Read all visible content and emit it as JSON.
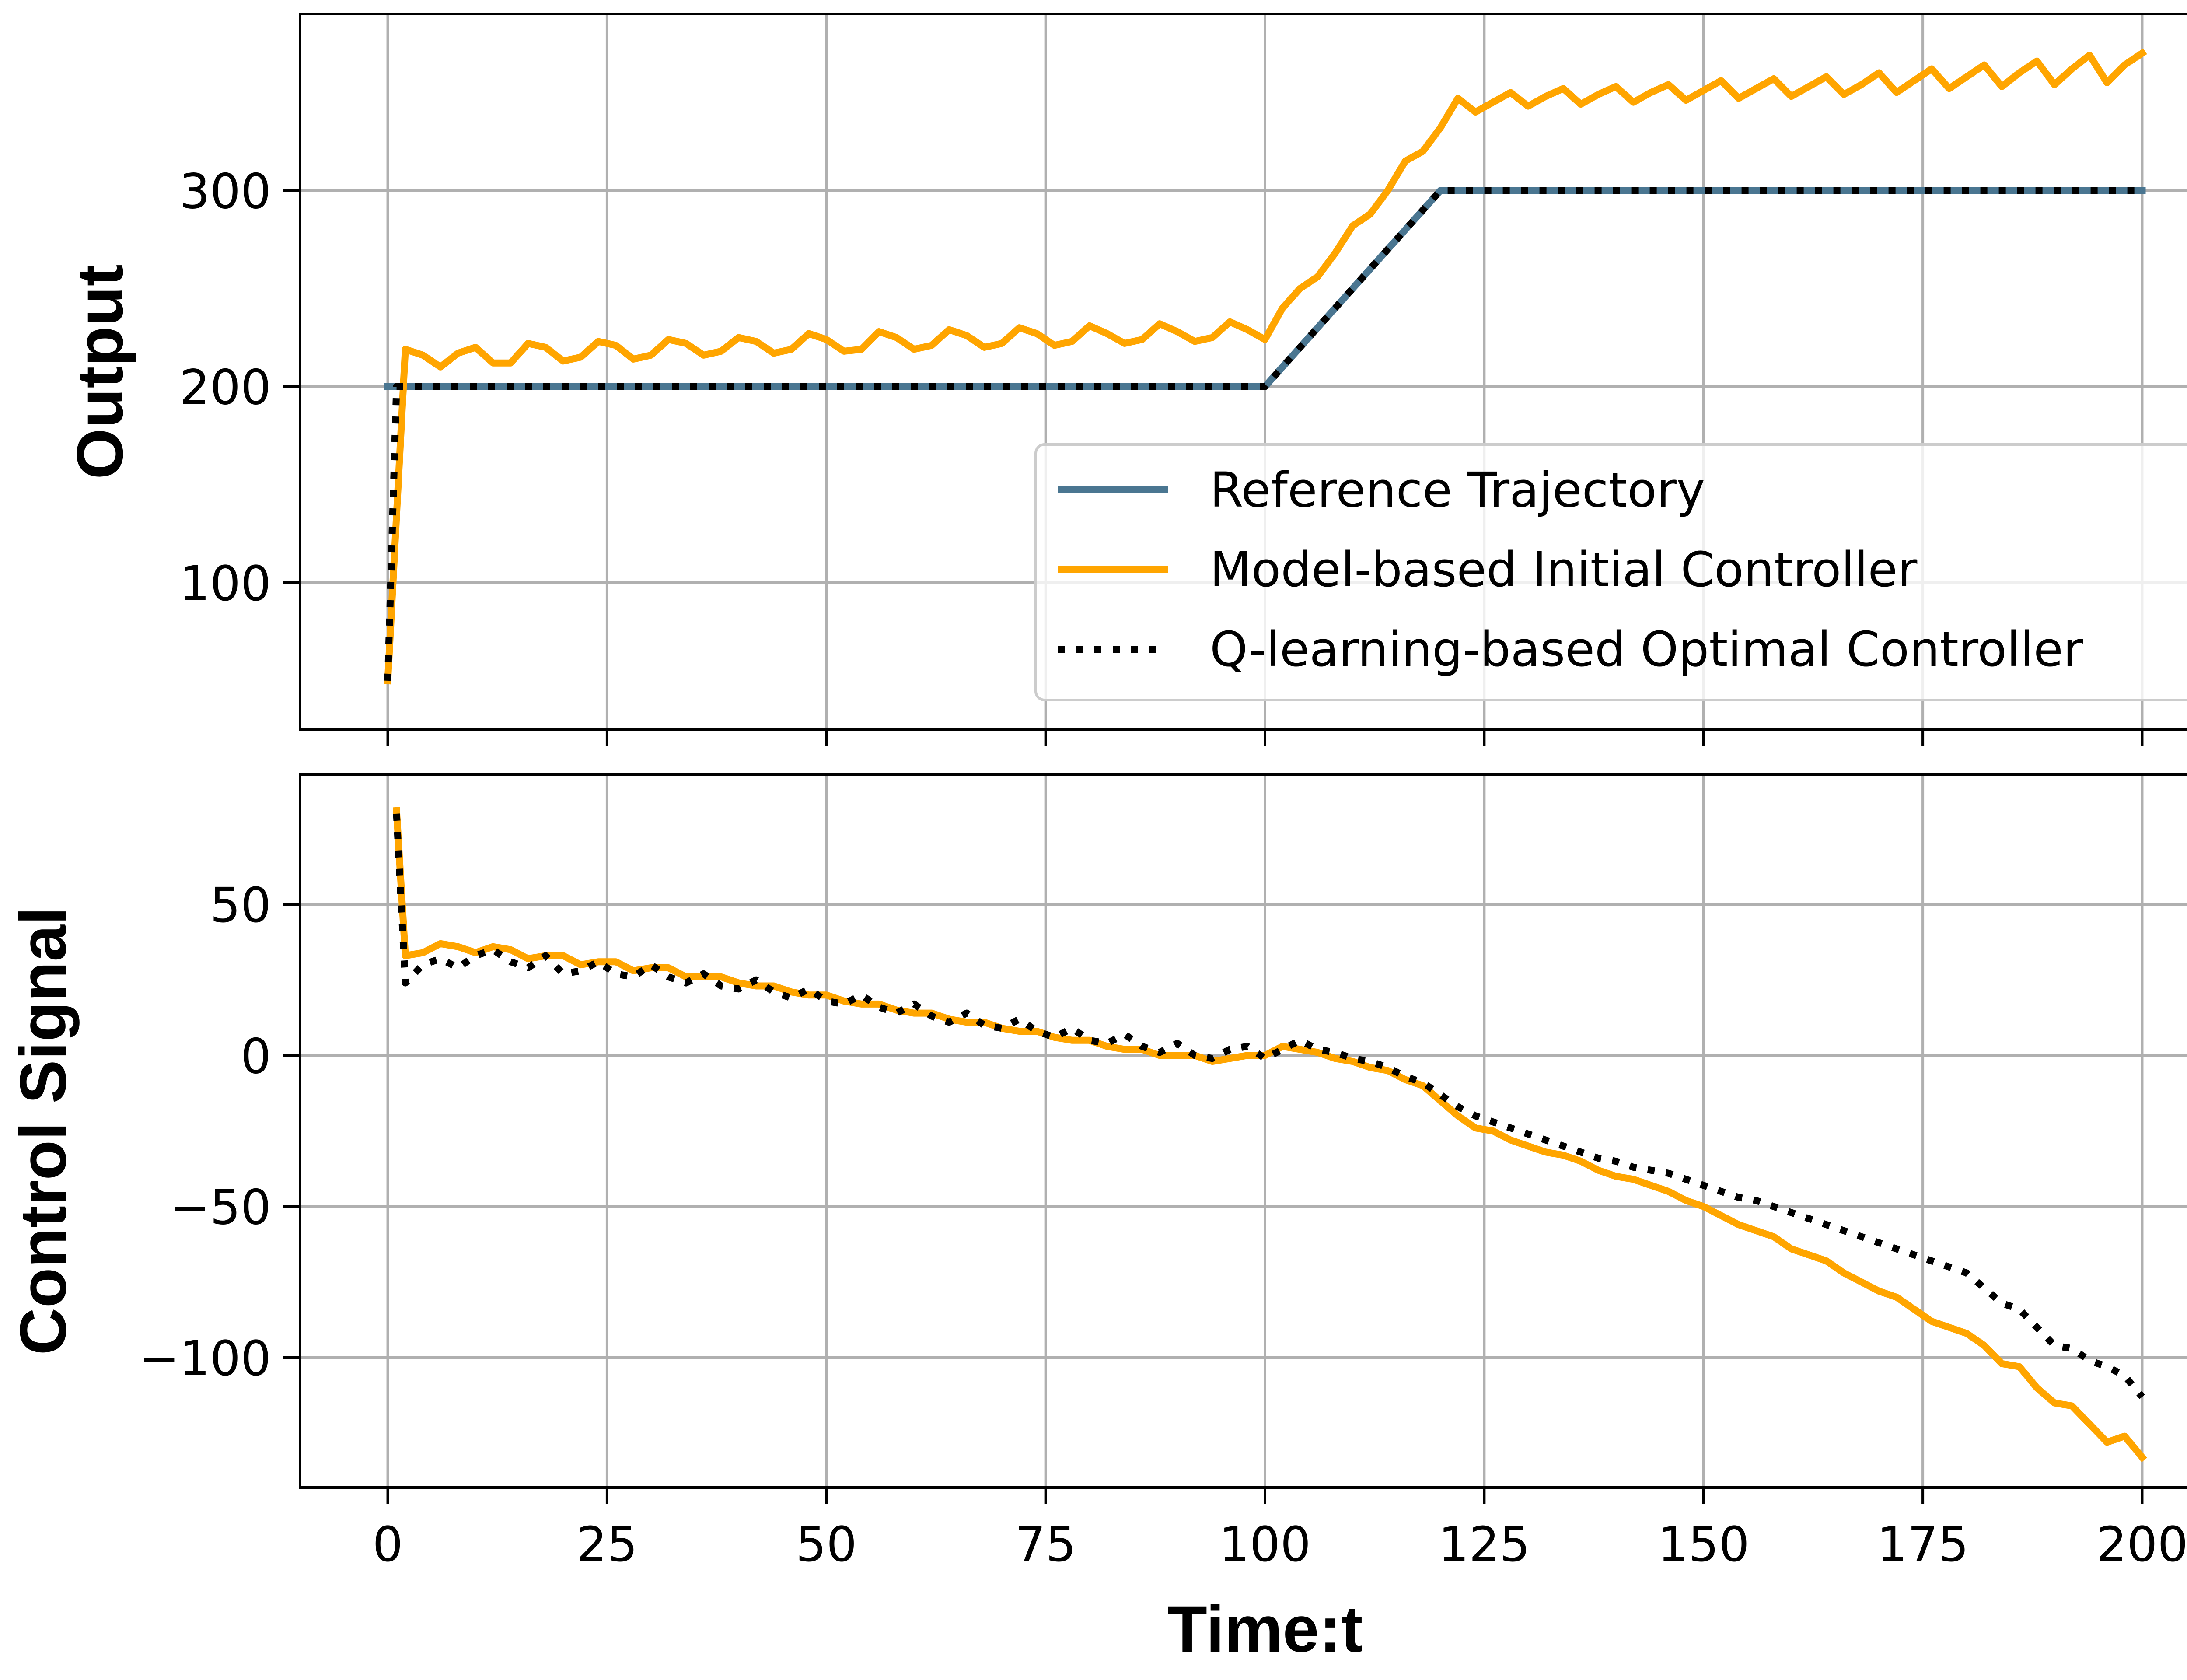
{
  "chart_data": [
    {
      "type": "line",
      "id": "top",
      "title": "",
      "xlabel": "",
      "ylabel": "Output",
      "xlim": [
        -10,
        210
      ],
      "ylim": [
        25,
        390
      ],
      "xticks": [
        0,
        25,
        50,
        75,
        100,
        125,
        150,
        175,
        200
      ],
      "xtick_labels_visible": false,
      "yticks": [
        100,
        200,
        300
      ],
      "grid": true,
      "legend": {
        "placement": "lower-right",
        "entries": [
          "Reference Trajectory",
          "Model-based Initial Controller",
          "Q-learning-based Optimal Controller"
        ]
      },
      "series": [
        {
          "name": "Reference Trajectory",
          "color": "#4a7691",
          "style": "solid",
          "x": [
            0,
            1,
            100,
            120,
            200
          ],
          "y": [
            200,
            200,
            200,
            300,
            300
          ]
        },
        {
          "name": "Model-based Initial Controller",
          "color": "#ffa500",
          "style": "solid",
          "x": [
            0,
            2,
            4,
            6,
            8,
            10,
            12,
            14,
            16,
            18,
            20,
            22,
            24,
            26,
            28,
            30,
            32,
            34,
            36,
            38,
            40,
            42,
            44,
            46,
            48,
            50,
            52,
            54,
            56,
            58,
            60,
            62,
            64,
            66,
            68,
            70,
            72,
            74,
            76,
            78,
            80,
            82,
            84,
            86,
            88,
            90,
            92,
            94,
            96,
            98,
            100,
            102,
            104,
            106,
            108,
            110,
            112,
            114,
            116,
            118,
            120,
            122,
            124,
            126,
            128,
            130,
            132,
            134,
            136,
            138,
            140,
            142,
            144,
            146,
            148,
            150,
            152,
            154,
            156,
            158,
            160,
            162,
            164,
            166,
            168,
            170,
            172,
            174,
            176,
            178,
            180,
            182,
            184,
            186,
            188,
            190,
            192,
            194,
            196,
            198,
            200
          ],
          "y": [
            50,
            219,
            216,
            210,
            217,
            220,
            212,
            212,
            222,
            220,
            213,
            215,
            223,
            221,
            214,
            216,
            224,
            222,
            216,
            218,
            225,
            223,
            217,
            219,
            227,
            224,
            218,
            219,
            228,
            225,
            219,
            221,
            229,
            226,
            220,
            222,
            230,
            227,
            221,
            223,
            231,
            227,
            222,
            224,
            232,
            228,
            223,
            225,
            233,
            229,
            224,
            240,
            250,
            256,
            268,
            282,
            288,
            300,
            315,
            320,
            332,
            347,
            340,
            345,
            350,
            343,
            348,
            352,
            344,
            349,
            353,
            345,
            350,
            354,
            346,
            351,
            356,
            347,
            352,
            357,
            348,
            353,
            358,
            349,
            354,
            360,
            350,
            356,
            362,
            352,
            358,
            364,
            353,
            360,
            366,
            354,
            362,
            369,
            355,
            364,
            370
          ]
        },
        {
          "name": "Q-learning-based Optimal Controller",
          "color": "#000000",
          "style": "dotted",
          "x": [
            0,
            1,
            100,
            120,
            200
          ],
          "y": [
            50,
            200,
            200,
            300,
            300
          ]
        }
      ]
    },
    {
      "type": "line",
      "id": "bottom",
      "title": "",
      "xlabel": "Time:t",
      "ylabel": "Control Signal",
      "xlim": [
        -10,
        210
      ],
      "ylim": [
        -143,
        93
      ],
      "xticks": [
        0,
        25,
        50,
        75,
        100,
        125,
        150,
        175,
        200
      ],
      "yticks": [
        -100,
        -50,
        0,
        50
      ],
      "ytick_labels": [
        "−100",
        "−50",
        "0",
        "50"
      ],
      "grid": true,
      "series": [
        {
          "name": "Model-based Initial Controller",
          "color": "#ffa500",
          "style": "solid",
          "x": [
            1,
            2,
            4,
            6,
            8,
            10,
            12,
            14,
            16,
            18,
            20,
            22,
            24,
            26,
            28,
            30,
            32,
            34,
            36,
            38,
            40,
            42,
            44,
            46,
            48,
            50,
            52,
            54,
            56,
            58,
            60,
            62,
            64,
            66,
            68,
            70,
            72,
            74,
            76,
            78,
            80,
            82,
            84,
            86,
            88,
            90,
            92,
            94,
            96,
            98,
            100,
            102,
            104,
            106,
            108,
            110,
            112,
            114,
            116,
            118,
            120,
            122,
            124,
            126,
            128,
            130,
            132,
            134,
            136,
            138,
            140,
            142,
            144,
            146,
            148,
            150,
            152,
            154,
            156,
            158,
            160,
            162,
            164,
            166,
            168,
            170,
            172,
            174,
            176,
            178,
            180,
            182,
            184,
            186,
            188,
            190,
            192,
            194,
            196,
            198,
            200
          ],
          "y": [
            81,
            33,
            34,
            37,
            36,
            34,
            36,
            35,
            32,
            33,
            33,
            30,
            31,
            31,
            28,
            29,
            29,
            26,
            26,
            26,
            24,
            23,
            23,
            21,
            20,
            20,
            18,
            17,
            17,
            15,
            14,
            14,
            12,
            11,
            11,
            9,
            8,
            8,
            6,
            5,
            5,
            3,
            2,
            2,
            0,
            0,
            0,
            -2,
            -1,
            0,
            0,
            3,
            2,
            1,
            -1,
            -2,
            -4,
            -5,
            -8,
            -10,
            -15,
            -20,
            -24,
            -25,
            -28,
            -30,
            -32,
            -33,
            -35,
            -38,
            -40,
            -41,
            -43,
            -45,
            -48,
            -50,
            -53,
            -56,
            -58,
            -60,
            -64,
            -66,
            -68,
            -72,
            -75,
            -78,
            -80,
            -84,
            -88,
            -90,
            -92,
            -96,
            -102,
            -103,
            -110,
            -115,
            -116,
            -122,
            -128,
            -126,
            -133
          ]
        },
        {
          "name": "Q-learning-based Optimal Controller",
          "color": "#000000",
          "style": "dotted",
          "x": [
            1,
            2,
            4,
            6,
            8,
            10,
            12,
            14,
            16,
            18,
            20,
            22,
            24,
            26,
            28,
            30,
            32,
            34,
            36,
            38,
            40,
            42,
            44,
            46,
            48,
            50,
            52,
            54,
            56,
            58,
            60,
            62,
            64,
            66,
            68,
            70,
            72,
            74,
            76,
            78,
            80,
            82,
            84,
            86,
            88,
            90,
            92,
            94,
            96,
            98,
            100,
            102,
            104,
            106,
            108,
            110,
            112,
            114,
            116,
            118,
            120,
            122,
            124,
            126,
            128,
            130,
            132,
            134,
            136,
            138,
            140,
            142,
            144,
            146,
            148,
            150,
            152,
            154,
            156,
            158,
            160,
            162,
            164,
            166,
            168,
            170,
            172,
            174,
            176,
            178,
            180,
            182,
            184,
            186,
            188,
            190,
            192,
            194,
            196,
            198,
            200
          ],
          "y": [
            80,
            24,
            30,
            32,
            29,
            33,
            35,
            31,
            29,
            33,
            27,
            28,
            31,
            27,
            26,
            30,
            26,
            24,
            27,
            23,
            22,
            25,
            21,
            19,
            22,
            18,
            17,
            20,
            16,
            14,
            17,
            13,
            11,
            14,
            10,
            9,
            12,
            8,
            6,
            9,
            5,
            4,
            7,
            3,
            1,
            4,
            0,
            -1,
            2,
            3,
            -1,
            2,
            5,
            2,
            1,
            -1,
            -2,
            -4,
            -7,
            -9,
            -13,
            -17,
            -20,
            -22,
            -24,
            -26,
            -28,
            -30,
            -32,
            -34,
            -35,
            -37,
            -38,
            -39,
            -41,
            -43,
            -45,
            -47,
            -48,
            -50,
            -52,
            -54,
            -56,
            -58,
            -60,
            -62,
            -64,
            -66,
            -68,
            -70,
            -72,
            -77,
            -82,
            -84,
            -90,
            -96,
            -97,
            -101,
            -103,
            -106,
            -113
          ]
        }
      ]
    }
  ]
}
